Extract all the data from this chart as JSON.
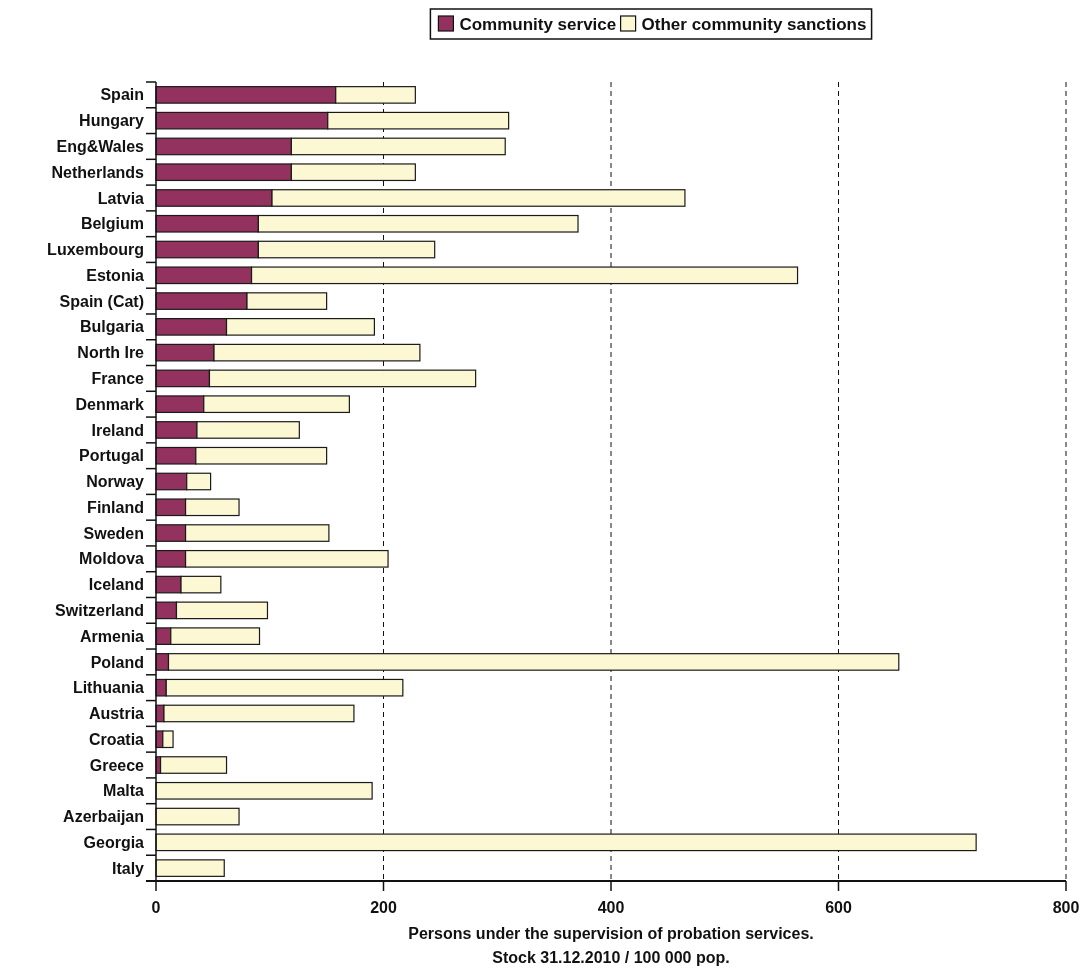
{
  "chart_data": {
    "type": "bar",
    "orientation": "horizontal",
    "stacked": true,
    "categories": [
      "Spain",
      "Hungary",
      "Eng&Wales",
      "Netherlands",
      "Latvia",
      "Belgium",
      "Luxembourg",
      "Estonia",
      "Spain (Cat)",
      "Bulgaria",
      "North Ire",
      "France",
      "Denmark",
      "Ireland",
      "Portugal",
      "Norway",
      "Finland",
      "Sweden",
      "Moldova",
      "Iceland",
      "Switzerland",
      "Armenia",
      "Poland",
      "Lithuania",
      "Austria",
      "Croatia",
      "Greece",
      "Malta",
      "Azerbaijan",
      "Georgia",
      "Italy"
    ],
    "series": [
      {
        "name": "Community service",
        "color": "#93325e",
        "values": [
          158,
          151,
          119,
          119,
          102,
          90,
          90,
          84,
          80,
          62,
          51,
          47,
          42,
          36,
          35,
          27,
          26,
          26,
          26,
          22,
          18,
          13,
          11,
          9,
          7,
          6,
          4,
          null,
          null,
          0,
          0
        ]
      },
      {
        "name": "Other community sanctions",
        "color": "#fdf8d4",
        "values": [
          70,
          159,
          188,
          109,
          363,
          281,
          155,
          480,
          70,
          130,
          181,
          234,
          128,
          90,
          115,
          21,
          47,
          126,
          178,
          35,
          80,
          78,
          642,
          208,
          167,
          9,
          58,
          190,
          73,
          721,
          60
        ]
      }
    ],
    "xlim": [
      0,
      800
    ],
    "xticks": [
      0,
      200,
      400,
      600,
      800
    ],
    "xlabel": "Persons under the supervision of probation services.\nStock 31.12.2010 / 100 000 pop.",
    "grid": "x",
    "legend": "top"
  }
}
